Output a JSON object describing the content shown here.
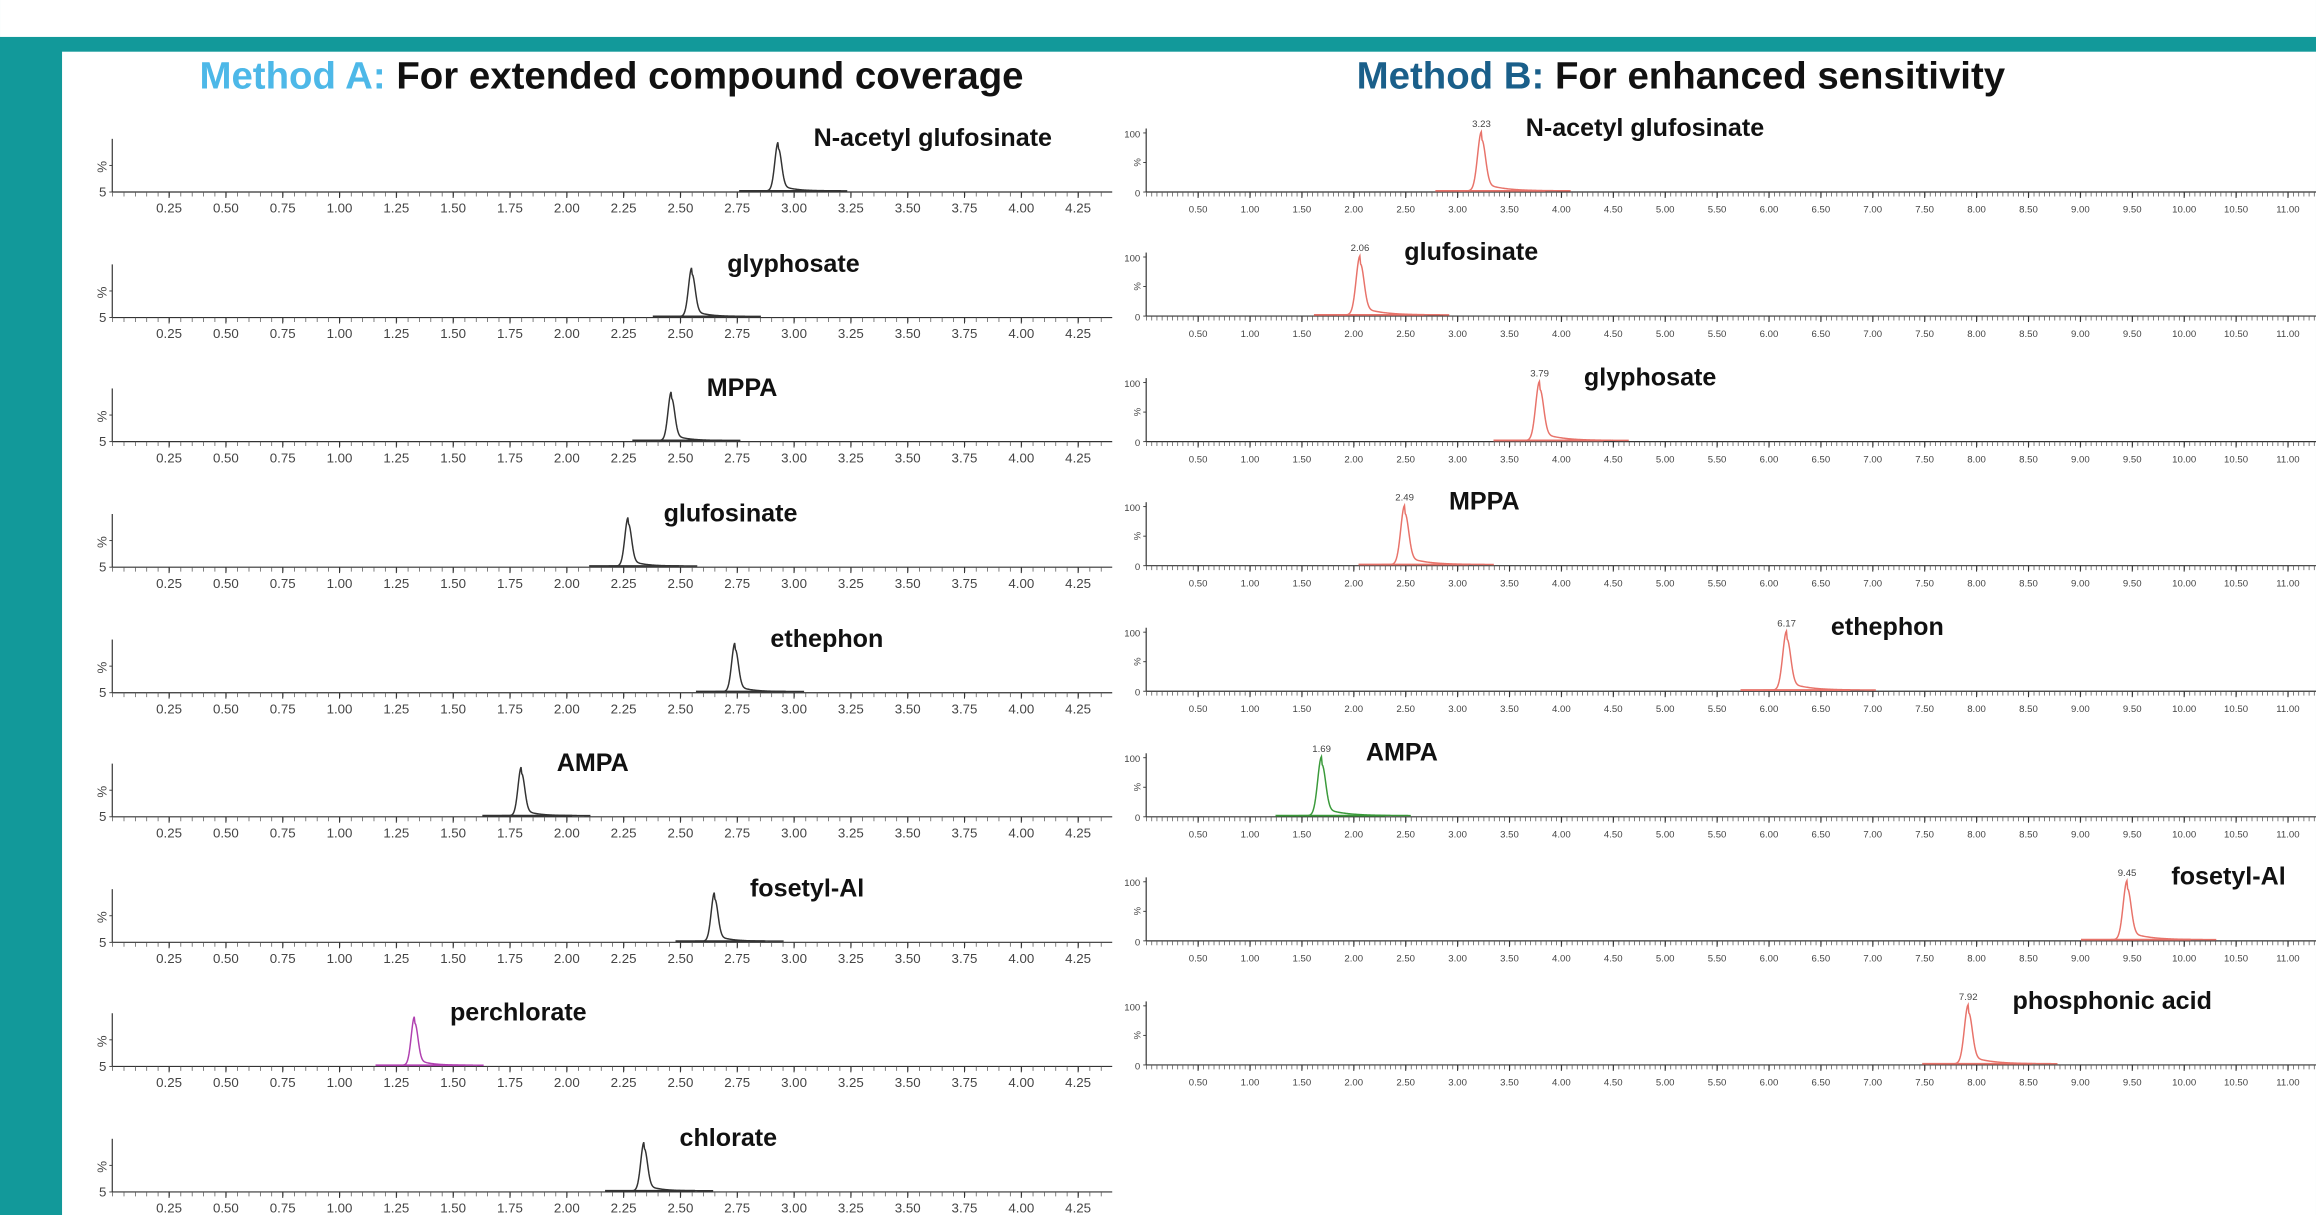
{
  "chart_data": [
    {
      "type": "chromatogram",
      "title_prefix": "Method A:",
      "title": "For extended compound coverage",
      "xlim": [
        0,
        4.4
      ],
      "xticks": [
        0.25,
        {
          "value": 0.5,
          "label": "0.50"
        },
        0.75,
        {
          "value": 1,
          "label": "1.00"
        },
        1.25,
        {
          "value": 1.5,
          "label": "1.50"
        },
        1.75,
        {
          "value": 2,
          "label": "2.00"
        },
        2.25,
        {
          "value": 2.5,
          "label": "2.50"
        },
        2.75,
        {
          "value": 3,
          "label": "3.00"
        },
        3.25,
        {
          "value": 3.5,
          "label": "3.50"
        },
        3.75,
        {
          "value": 4,
          "label": "4.00"
        },
        4.25
      ],
      "ylabels": [
        "%",
        "5"
      ],
      "series": [
        {
          "name": "N-acetyl glufosinate",
          "color": "#333333",
          "peak": 2.93
        },
        {
          "name": "glyphosate",
          "color": "#333333",
          "peak": 2.55
        },
        {
          "name": "MPPA",
          "color": "#333333",
          "peak": 2.46
        },
        {
          "name": "glufosinate",
          "color": "#333333",
          "peak": 2.27
        },
        {
          "name": "ethephon",
          "color": "#333333",
          "peak": 2.74
        },
        {
          "name": "AMPA",
          "color": "#333333",
          "peak": 1.8
        },
        {
          "name": "fosetyl-Al",
          "color": "#333333",
          "peak": 2.65
        },
        {
          "name": "perchlorate",
          "color": "#b040b0",
          "peak": 1.33
        },
        {
          "name": "chlorate",
          "color": "#333333",
          "peak": 2.34
        }
      ]
    },
    {
      "type": "chromatogram",
      "title_prefix": "Method B:",
      "title": "For enhanced sensitivity",
      "xlim": [
        0,
        11.27
      ],
      "xticks": [
        {
          "value": 0.5,
          "label": "0.50"
        },
        {
          "value": 1,
          "label": "1.00"
        },
        {
          "value": 1.5,
          "label": "1.50"
        },
        {
          "value": 2,
          "label": "2.00"
        },
        {
          "value": 2.5,
          "label": "2.50"
        },
        {
          "value": 3,
          "label": "3.00"
        },
        {
          "value": 3.5,
          "label": "3.50"
        },
        {
          "value": 4,
          "label": "4.00"
        },
        {
          "value": 4.5,
          "label": "4.50"
        },
        {
          "value": 5,
          "label": "5.00"
        },
        {
          "value": 5.5,
          "label": "5.50"
        },
        {
          "value": 6,
          "label": "6.00"
        },
        {
          "value": 6.5,
          "label": "6.50"
        },
        {
          "value": 7,
          "label": "7.00"
        },
        {
          "value": 7.5,
          "label": "7.50"
        },
        {
          "value": 8,
          "label": "8.00"
        },
        {
          "value": 8.5,
          "label": "8.50"
        },
        {
          "value": 9,
          "label": "9.00"
        },
        {
          "value": 9.5,
          "label": "9.50"
        },
        {
          "value": 10,
          "label": "10.00"
        },
        {
          "value": 10.5,
          "label": "10.50"
        },
        {
          "value": 11,
          "label": "11.00"
        }
      ],
      "ylabels": [
        "100",
        "%",
        "0"
      ],
      "series": [
        {
          "name": "N-acetyl glufosinate",
          "color": "#e8736a",
          "peak": 3.23
        },
        {
          "name": "glufosinate",
          "color": "#e8736a",
          "peak": 2.06
        },
        {
          "name": "glyphosate",
          "color": "#e8736a",
          "peak": 3.79
        },
        {
          "name": "MPPA",
          "color": "#e8736a",
          "peak": 2.49
        },
        {
          "name": "ethephon",
          "color": "#e8736a",
          "peak": 6.17
        },
        {
          "name": "AMPA",
          "color": "#3a9a3a",
          "peak": 1.69
        },
        {
          "name": "fosetyl-Al",
          "color": "#e8736a",
          "peak": 9.45
        },
        {
          "name": "phosphonic acid",
          "color": "#e8736a",
          "peak": 7.92
        }
      ]
    }
  ]
}
